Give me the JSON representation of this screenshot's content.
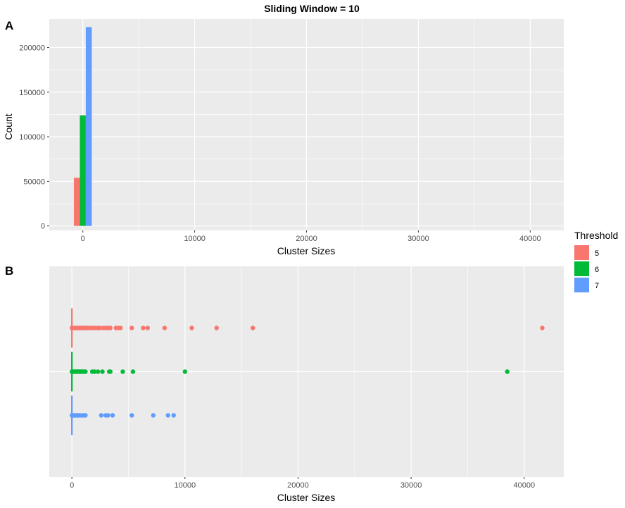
{
  "chart_data": [
    {
      "panel_label": "A",
      "type": "bar",
      "title": "Sliding Window = 10",
      "xlabel": "Cluster Sizes",
      "ylabel": "Count",
      "xlim": [
        -3000,
        43000
      ],
      "ylim": [
        -5000,
        232000
      ],
      "x_ticks": [
        0,
        10000,
        20000,
        30000,
        40000
      ],
      "x_tick_labels": [
        "0",
        "10000",
        "20000",
        "30000",
        "40000"
      ],
      "y_ticks": [
        0,
        50000,
        100000,
        150000,
        200000
      ],
      "y_tick_labels": [
        "0",
        "50000",
        "100000",
        "150000",
        "200000"
      ],
      "grid": true,
      "bar_position": "dodge",
      "bin_center": 0,
      "series": [
        {
          "name": "5",
          "values": [
            54000
          ]
        },
        {
          "name": "6",
          "values": [
            124000
          ]
        },
        {
          "name": "7",
          "values": [
            223000
          ]
        }
      ]
    },
    {
      "panel_label": "B",
      "type": "scatter",
      "xlabel": "Cluster Sizes",
      "xlim": [
        -2000,
        43500
      ],
      "x_ticks": [
        0,
        10000,
        20000,
        30000,
        40000
      ],
      "x_tick_labels": [
        "0",
        "10000",
        "20000",
        "30000",
        "40000"
      ],
      "grid": true,
      "series": [
        {
          "name": "5",
          "x": [
            0,
            100,
            200,
            300,
            400,
            500,
            600,
            700,
            800,
            900,
            1000,
            1100,
            1200,
            1300,
            1400,
            1500,
            1700,
            1900,
            2100,
            2300,
            2500,
            2800,
            3000,
            3200,
            3400,
            3900,
            4100,
            4300,
            5300,
            6300,
            6700,
            8200,
            10600,
            12800,
            16000,
            41600
          ]
        },
        {
          "name": "6",
          "x": [
            0,
            100,
            200,
            300,
            400,
            500,
            600,
            700,
            800,
            900,
            1000,
            1100,
            1200,
            1800,
            2000,
            2300,
            2700,
            3300,
            3400,
            4500,
            5400,
            10000,
            38500
          ]
        },
        {
          "name": "7",
          "x": [
            0,
            100,
            200,
            300,
            400,
            500,
            600,
            800,
            1000,
            1200,
            2600,
            3000,
            3200,
            3600,
            5300,
            7200,
            8500,
            9000
          ]
        }
      ]
    }
  ],
  "legend": {
    "title": "Threshold",
    "items": [
      {
        "label": "5",
        "color": "#F8766D"
      },
      {
        "label": "6",
        "color": "#00BA38"
      },
      {
        "label": "7",
        "color": "#619CFF"
      }
    ]
  },
  "colors": {
    "panel_bg": "#EBEBEB",
    "grid": "#FFFFFF"
  }
}
